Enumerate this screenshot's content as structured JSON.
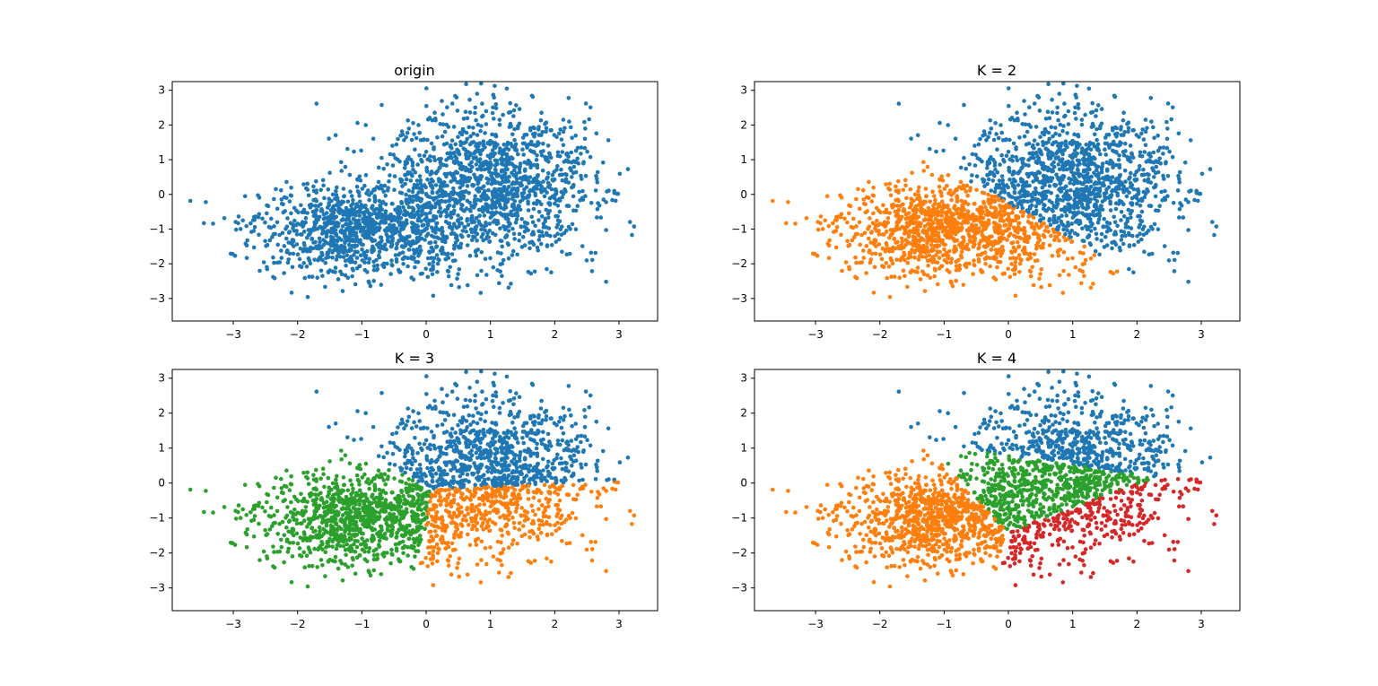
{
  "figure": {
    "background": "#ffffff"
  },
  "chart_data": [
    {
      "type": "scatter",
      "title": "origin",
      "xlabel": "",
      "ylabel": "",
      "xlim": [
        -3.95,
        3.6
      ],
      "ylim": [
        -3.65,
        3.25
      ],
      "xticks": [
        -3,
        -2,
        -1,
        0,
        1,
        2,
        3
      ],
      "yticks": [
        -3,
        -2,
        -1,
        0,
        1,
        2,
        3
      ],
      "xtick_labels": [
        "−3",
        "−2",
        "−1",
        "0",
        "1",
        "2",
        "3"
      ],
      "ytick_labels": [
        "−3",
        "−2",
        "−1",
        "0",
        "1",
        "2",
        "3"
      ],
      "grid": false,
      "k": 1,
      "cluster_colors": [
        "#1f77b4"
      ]
    },
    {
      "type": "scatter",
      "title": "K = 2",
      "xlabel": "",
      "ylabel": "",
      "xlim": [
        -3.95,
        3.6
      ],
      "ylim": [
        -3.65,
        3.25
      ],
      "xticks": [
        -3,
        -2,
        -1,
        0,
        1,
        2,
        3
      ],
      "yticks": [
        -3,
        -2,
        -1,
        0,
        1,
        2,
        3
      ],
      "xtick_labels": [
        "−3",
        "−2",
        "−1",
        "0",
        "1",
        "2",
        "3"
      ],
      "ytick_labels": [
        "−3",
        "−2",
        "−1",
        "0",
        "1",
        "2",
        "3"
      ],
      "grid": false,
      "k": 2,
      "cluster_colors": [
        "#1f77b4",
        "#ff7f0e"
      ]
    },
    {
      "type": "scatter",
      "title": "K = 3",
      "xlabel": "",
      "ylabel": "",
      "xlim": [
        -3.95,
        3.6
      ],
      "ylim": [
        -3.65,
        3.25
      ],
      "xticks": [
        -3,
        -2,
        -1,
        0,
        1,
        2,
        3
      ],
      "yticks": [
        -3,
        -2,
        -1,
        0,
        1,
        2,
        3
      ],
      "xtick_labels": [
        "−3",
        "−2",
        "−1",
        "0",
        "1",
        "2",
        "3"
      ],
      "ytick_labels": [
        "−3",
        "−2",
        "−1",
        "0",
        "1",
        "2",
        "3"
      ],
      "grid": false,
      "k": 3,
      "cluster_colors": [
        "#1f77b4",
        "#ff7f0e",
        "#2ca02c"
      ]
    },
    {
      "type": "scatter",
      "title": "K = 4",
      "xlabel": "",
      "ylabel": "",
      "xlim": [
        -3.95,
        3.6
      ],
      "ylim": [
        -3.65,
        3.25
      ],
      "xticks": [
        -3,
        -2,
        -1,
        0,
        1,
        2,
        3
      ],
      "yticks": [
        -3,
        -2,
        -1,
        0,
        1,
        2,
        3
      ],
      "xtick_labels": [
        "−3",
        "−2",
        "−1",
        "0",
        "1",
        "2",
        "3"
      ],
      "ytick_labels": [
        "−3",
        "−2",
        "−1",
        "0",
        "1",
        "2",
        "3"
      ],
      "grid": false,
      "k": 4,
      "cluster_colors": [
        "#1f77b4",
        "#ff7f0e",
        "#2ca02c",
        "#d62728"
      ]
    }
  ],
  "source_distribution": {
    "point_count": 2400,
    "components": [
      {
        "mean": [
          1,
          0.3
        ],
        "std": [
          0.8,
          1.1
        ],
        "weight": 0.55
      },
      {
        "mean": [
          -1,
          -1
        ],
        "std": [
          0.8,
          0.65
        ],
        "weight": 0.45
      }
    ]
  }
}
